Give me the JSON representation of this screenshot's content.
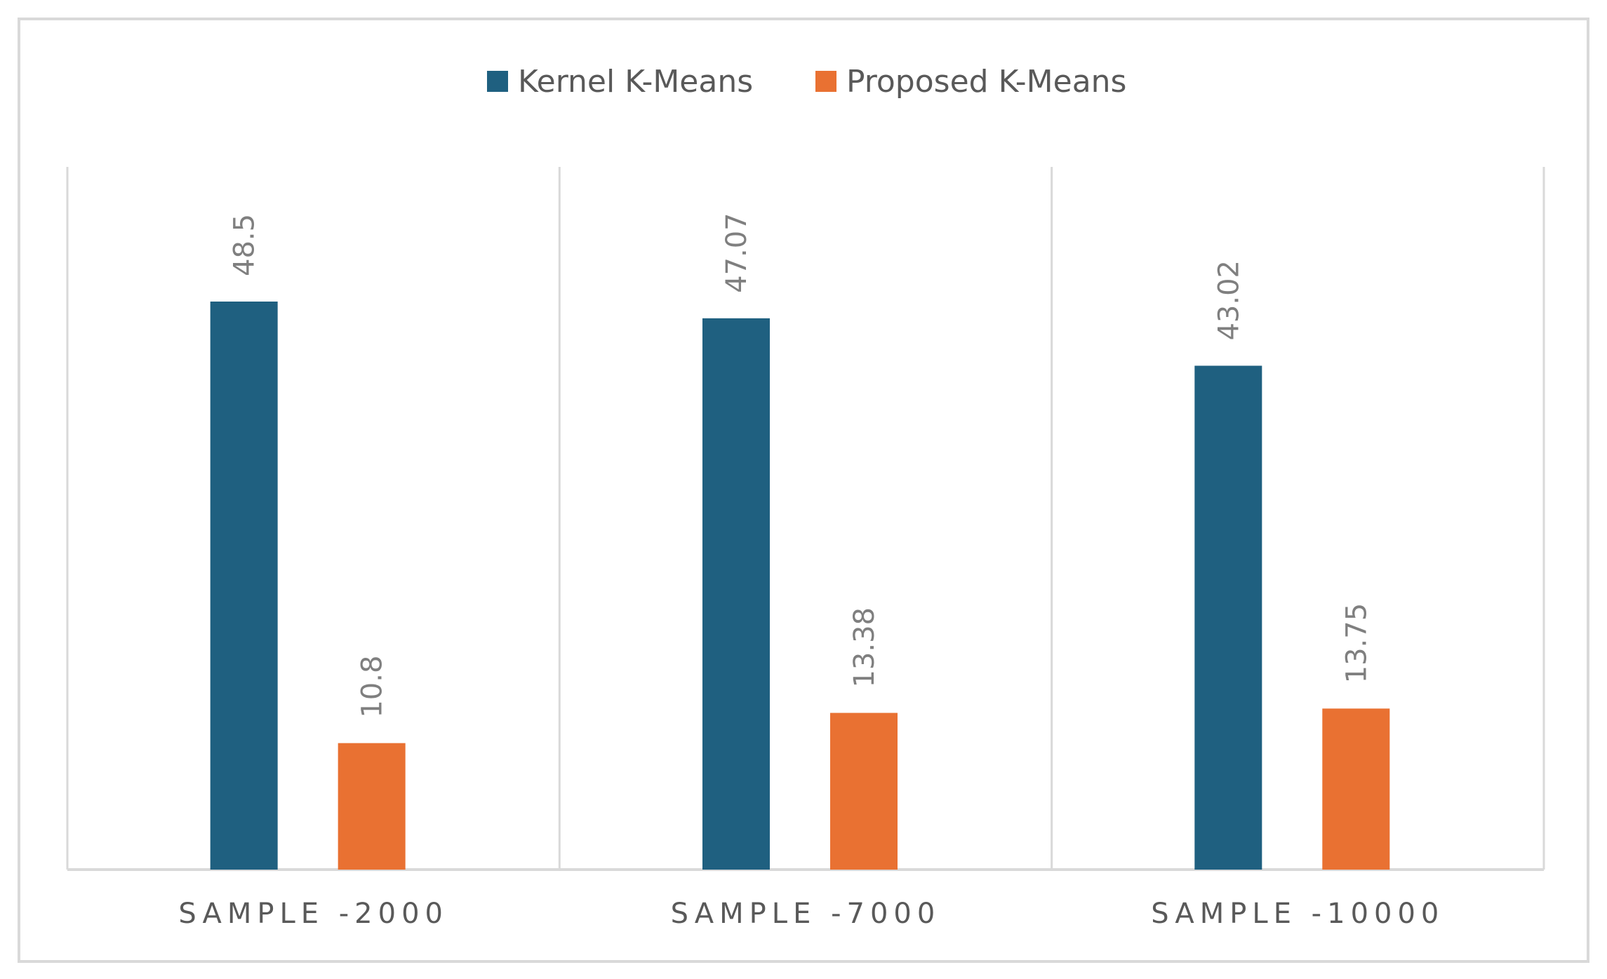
{
  "chart_data": {
    "type": "bar",
    "title": "",
    "xlabel": "",
    "ylabel": "",
    "categories": [
      "SAMPLE -2000",
      "SAMPLE -7000",
      "SAMPLE -10000"
    ],
    "series": [
      {
        "name": "Kernel K-Means",
        "color": "#1f6080",
        "values": [
          48.5,
          47.07,
          43.02
        ],
        "labels": [
          "48.5",
          "47.07",
          "43.02"
        ]
      },
      {
        "name": "Proposed K-Means",
        "color": "#e97132",
        "values": [
          10.8,
          13.38,
          13.75
        ],
        "labels": [
          "10.8",
          "13.38",
          "13.75"
        ]
      }
    ],
    "ylim": [
      0,
      60
    ],
    "legend_position": "top-center",
    "grid": false,
    "category_separators": true
  }
}
